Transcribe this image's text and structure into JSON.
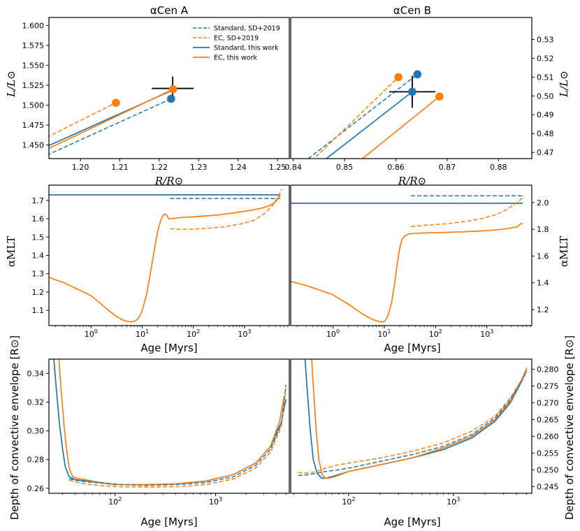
{
  "colors": {
    "blue": "#1f77b4",
    "orange": "#ff7f0e",
    "black": "#000000"
  },
  "titles": {
    "left": "αCen A",
    "right": "αCen B"
  },
  "xlabels": {
    "radius": "R/R⊙",
    "age": "Age [Myrs]"
  },
  "ylabels": {
    "luminosity": "L/L⊙",
    "alpha": "αMLT",
    "depth": "Depth of convective envelope [R⊙]"
  },
  "legend": [
    {
      "label": "Standard, SD+2019",
      "color": "blue",
      "style": "dashed"
    },
    {
      "label": "EC, SD+2019",
      "color": "orange",
      "style": "dashed"
    },
    {
      "label": "Standard, this work",
      "color": "blue",
      "style": "solid"
    },
    {
      "label": "EC, this work",
      "color": "orange",
      "style": "solid"
    }
  ],
  "chart_data": [
    {
      "id": "A_LR",
      "type": "line",
      "title": "αCen A",
      "xlabel": "R/R⊙",
      "ylabel": "L/L⊙",
      "xlim": [
        1.192,
        1.253
      ],
      "ylim": [
        1.433,
        1.61
      ],
      "xticks": [
        1.2,
        1.21,
        1.22,
        1.23,
        1.24,
        1.25
      ],
      "xtick_labels": [
        "1.20",
        "1.21",
        "1.22",
        "1.23",
        "1.24",
        "1.25"
      ],
      "yticks": [
        1.45,
        1.475,
        1.5,
        1.525,
        1.55,
        1.575,
        1.6
      ],
      "ytick_labels": [
        "1.450",
        "1.475",
        "1.500",
        "1.525",
        "1.550",
        "1.575",
        "1.600"
      ],
      "series": [
        {
          "color": "blue",
          "style": "dashed",
          "x": [
            1.19,
            1.223
          ],
          "y": [
            1.434,
            1.508
          ]
        },
        {
          "color": "orange",
          "style": "dashed",
          "x": [
            1.19,
            1.209
          ],
          "y": [
            1.456,
            1.503
          ]
        },
        {
          "color": "blue",
          "style": "solid",
          "x": [
            1.19,
            1.223
          ],
          "y": [
            1.445,
            1.518
          ]
        },
        {
          "color": "orange",
          "style": "solid",
          "x": [
            1.19,
            1.2235
          ],
          "y": [
            1.441,
            1.52
          ]
        }
      ],
      "markers": [
        {
          "color": "blue",
          "x": 1.223,
          "y": 1.508
        },
        {
          "color": "orange",
          "x": 1.209,
          "y": 1.503
        },
        {
          "color": "orange",
          "x": 1.2235,
          "y": 1.52
        }
      ],
      "errorbar": {
        "x": 1.2234,
        "y": 1.521,
        "xerr": 0.0053,
        "yerr": 0.015
      }
    },
    {
      "id": "B_LR",
      "type": "line",
      "title": "αCen B",
      "xlabel": "R/R⊙",
      "ylabel": "L/L⊙",
      "xlim": [
        0.8395,
        0.8865
      ],
      "ylim": [
        0.4667,
        0.5417
      ],
      "xticks": [
        0.84,
        0.85,
        0.86,
        0.87,
        0.88
      ],
      "xtick_labels": [
        "0.84",
        "0.85",
        "0.86",
        "0.87",
        "0.88"
      ],
      "yticks": [
        0.47,
        0.48,
        0.49,
        0.5,
        0.51,
        0.52,
        0.53
      ],
      "ytick_labels": [
        "0.47",
        "0.48",
        "0.49",
        "0.50",
        "0.51",
        "0.52",
        "0.53"
      ],
      "series": [
        {
          "color": "blue",
          "style": "dashed",
          "x": [
            0.84,
            0.8642
          ],
          "y": [
            0.4605,
            0.5115
          ]
        },
        {
          "color": "orange",
          "style": "dashed",
          "x": [
            0.84,
            0.8605
          ],
          "y": [
            0.456,
            0.51
          ]
        },
        {
          "color": "blue",
          "style": "solid",
          "x": [
            0.84,
            0.8632
          ],
          "y": [
            0.453,
            0.5022
          ]
        },
        {
          "color": "orange",
          "style": "solid",
          "x": [
            0.85,
            0.8685
          ],
          "y": [
            0.459,
            0.4997
          ]
        }
      ],
      "markers": [
        {
          "color": "blue",
          "x": 0.8642,
          "y": 0.5115
        },
        {
          "color": "orange",
          "x": 0.8605,
          "y": 0.51
        },
        {
          "color": "blue",
          "x": 0.8632,
          "y": 0.5022
        },
        {
          "color": "orange",
          "x": 0.8685,
          "y": 0.4997
        }
      ],
      "errorbar": {
        "x": 0.8632,
        "y": 0.5022,
        "xerr": 0.0045,
        "yerr": 0.0085
      }
    },
    {
      "id": "A_alpha",
      "type": "line",
      "xscale": "log",
      "xlabel": "Age [Myrs]",
      "ylabel": "αMLT",
      "xlim": [
        0.15,
        7500
      ],
      "ylim": [
        1.017,
        1.783
      ],
      "xticks": [
        1,
        10,
        100,
        1000
      ],
      "xtick_labels": [
        "10^0",
        "10^1",
        "10^2",
        "10^3"
      ],
      "yticks": [
        1.1,
        1.2,
        1.3,
        1.4,
        1.5,
        1.6,
        1.7
      ],
      "ytick_labels": [
        "1.1",
        "1.2",
        "1.3",
        "1.4",
        "1.5",
        "1.6",
        "1.7"
      ],
      "series": [
        {
          "color": "blue",
          "style": "solid",
          "x": [
            0.15,
            5000
          ],
          "y": [
            1.73,
            1.73
          ]
        },
        {
          "color": "blue",
          "style": "dashed",
          "x": [
            35,
            5000
          ],
          "y": [
            1.71,
            1.71
          ]
        },
        {
          "color": "orange",
          "style": "dashed",
          "x": [
            35,
            60,
            100,
            200,
            400,
            800,
            1500,
            2500,
            3500,
            4500,
            5300
          ],
          "y": [
            1.545,
            1.542,
            1.543,
            1.548,
            1.556,
            1.57,
            1.59,
            1.63,
            1.67,
            1.72,
            1.76
          ]
        },
        {
          "color": "orange",
          "style": "solid",
          "x": [
            0.15,
            0.3,
            0.6,
            1.0,
            2.0,
            3.0,
            4.0,
            5.0,
            6.0,
            7.0,
            8.0,
            9.0,
            10,
            12,
            14,
            17,
            20,
            23,
            26,
            28,
            30,
            33,
            38,
            50,
            100,
            300,
            1000,
            2000,
            3000,
            4000,
            5000
          ],
          "y": [
            1.28,
            1.25,
            1.21,
            1.18,
            1.11,
            1.07,
            1.05,
            1.04,
            1.037,
            1.04,
            1.05,
            1.07,
            1.1,
            1.18,
            1.28,
            1.42,
            1.53,
            1.59,
            1.62,
            1.625,
            1.62,
            1.6,
            1.6,
            1.605,
            1.61,
            1.62,
            1.64,
            1.655,
            1.67,
            1.69,
            1.73
          ]
        }
      ]
    },
    {
      "id": "B_alpha",
      "type": "line",
      "xscale": "log",
      "xlabel": "Age [Myrs]",
      "ylabel": "αMLT",
      "xlim": [
        0.15,
        7500
      ],
      "ylim": [
        1.08,
        2.13
      ],
      "xticks": [
        1,
        10,
        100,
        1000
      ],
      "xtick_labels": [
        "10^0",
        "10^1",
        "10^2",
        "10^3"
      ],
      "yticks": [
        1.2,
        1.4,
        1.6,
        1.8,
        2.0
      ],
      "ytick_labels": [
        "1.2",
        "1.4",
        "1.6",
        "1.8",
        "2.0"
      ],
      "series": [
        {
          "color": "blue",
          "style": "solid",
          "x": [
            0.15,
            5000
          ],
          "y": [
            1.995,
            1.995
          ]
        },
        {
          "color": "blue",
          "style": "dashed",
          "x": [
            33,
            5000
          ],
          "y": [
            2.05,
            2.05
          ]
        },
        {
          "color": "orange",
          "style": "dashed",
          "x": [
            33,
            60,
            100,
            200,
            400,
            800,
            1500,
            2500,
            3500,
            4500,
            5300
          ],
          "y": [
            1.82,
            1.83,
            1.835,
            1.845,
            1.86,
            1.88,
            1.91,
            1.95,
            1.99,
            2.02,
            2.05
          ]
        },
        {
          "color": "orange",
          "style": "solid",
          "x": [
            0.15,
            0.3,
            0.6,
            1.0,
            2.0,
            4.0,
            6.0,
            8.0,
            9.0,
            10,
            11,
            12,
            14,
            16,
            18,
            20,
            22,
            25,
            30,
            40,
            60,
            100,
            300,
            1000,
            2000,
            3000,
            4000,
            4500,
            5000
          ],
          "y": [
            1.41,
            1.38,
            1.34,
            1.31,
            1.24,
            1.16,
            1.125,
            1.11,
            1.108,
            1.11,
            1.13,
            1.16,
            1.26,
            1.4,
            1.55,
            1.66,
            1.72,
            1.75,
            1.765,
            1.77,
            1.772,
            1.775,
            1.78,
            1.79,
            1.8,
            1.81,
            1.82,
            1.84,
            1.845
          ]
        }
      ]
    },
    {
      "id": "A_depth",
      "type": "line",
      "xscale": "log",
      "xlabel": "Age [Myrs]",
      "ylabel": "Depth of convective envelope [R⊙]",
      "xlim": [
        22,
        5400
      ],
      "ylim": [
        0.2565,
        0.35
      ],
      "xticks": [
        100,
        1000
      ],
      "xtick_labels": [
        "10^2",
        "10^3"
      ],
      "yticks": [
        0.26,
        0.28,
        0.3,
        0.32,
        0.34
      ],
      "ytick_labels": [
        "0.26",
        "0.28",
        "0.30",
        "0.32",
        "0.34"
      ],
      "series": [
        {
          "color": "blue",
          "style": "solid",
          "x": [
            24,
            26,
            28,
            30,
            32,
            35,
            40,
            60,
            100,
            200,
            400,
            800,
            1500,
            2500,
            3500,
            4500,
            5000
          ],
          "y": [
            0.36,
            0.33,
            0.305,
            0.288,
            0.275,
            0.268,
            0.266,
            0.2645,
            0.2625,
            0.2625,
            0.263,
            0.265,
            0.2695,
            0.2775,
            0.289,
            0.306,
            0.322
          ]
        },
        {
          "color": "orange",
          "style": "solid",
          "x": [
            27,
            29,
            31,
            33,
            35,
            38,
            42,
            60,
            100,
            200,
            400,
            800,
            1500,
            2500,
            3500,
            4300,
            4800
          ],
          "y": [
            0.36,
            0.33,
            0.305,
            0.287,
            0.274,
            0.268,
            0.267,
            0.265,
            0.2625,
            0.2625,
            0.263,
            0.265,
            0.2695,
            0.2775,
            0.289,
            0.306,
            0.324
          ]
        },
        {
          "color": "blue",
          "style": "dashed",
          "x": [
            35,
            50,
            80,
            120,
            200,
            400,
            800,
            1500,
            2500,
            3500,
            4500,
            5000
          ],
          "y": [
            0.2665,
            0.2645,
            0.2635,
            0.2625,
            0.262,
            0.2625,
            0.264,
            0.268,
            0.276,
            0.287,
            0.305,
            0.332
          ]
        },
        {
          "color": "orange",
          "style": "dashed",
          "x": [
            35,
            50,
            80,
            120,
            200,
            400,
            800,
            1500,
            2500,
            3500,
            4500,
            5000
          ],
          "y": [
            0.2655,
            0.263,
            0.2615,
            0.261,
            0.2608,
            0.261,
            0.2625,
            0.2665,
            0.274,
            0.285,
            0.303,
            0.33
          ]
        }
      ]
    },
    {
      "id": "B_depth",
      "type": "line",
      "xscale": "log",
      "xlabel": "Age [Myrs]",
      "ylabel": "Depth of convective envelope [R⊙]",
      "xlim": [
        28,
        5600
      ],
      "ylim": [
        0.243,
        0.283
      ],
      "xticks": [
        100,
        1000
      ],
      "xtick_labels": [
        "10^2",
        "10^3"
      ],
      "yticks": [
        0.245,
        0.25,
        0.255,
        0.26,
        0.265,
        0.27,
        0.275,
        0.28
      ],
      "ytick_labels": [
        "0.245",
        "0.250",
        "0.255",
        "0.260",
        "0.265",
        "0.270",
        "0.275",
        "0.280"
      ],
      "series": [
        {
          "color": "blue",
          "style": "solid",
          "x": [
            38,
            40,
            43,
            46,
            50,
            55,
            60,
            70,
            100,
            200,
            400,
            800,
            1500,
            2500,
            3500,
            4500,
            5000
          ],
          "y": [
            0.285,
            0.275,
            0.262,
            0.253,
            0.249,
            0.2475,
            0.2475,
            0.248,
            0.2495,
            0.2515,
            0.2535,
            0.256,
            0.2595,
            0.2645,
            0.27,
            0.2765,
            0.2795
          ]
        },
        {
          "color": "orange",
          "style": "solid",
          "x": [
            44,
            46,
            49,
            52,
            56,
            60,
            65,
            75,
            100,
            200,
            400,
            800,
            1500,
            2500,
            3500,
            4500,
            5000
          ],
          "y": [
            0.285,
            0.275,
            0.262,
            0.253,
            0.2485,
            0.2475,
            0.2475,
            0.248,
            0.2495,
            0.2515,
            0.2535,
            0.2565,
            0.26,
            0.265,
            0.2705,
            0.277,
            0.2795
          ]
        },
        {
          "color": "blue",
          "style": "dashed",
          "x": [
            33,
            40,
            50,
            60,
            80,
            100,
            200,
            400,
            800,
            1500,
            2500,
            3500,
            4500,
            5000
          ],
          "y": [
            0.2483,
            0.2485,
            0.249,
            0.2495,
            0.25,
            0.2505,
            0.2525,
            0.2545,
            0.257,
            0.2605,
            0.2655,
            0.271,
            0.2765,
            0.28
          ]
        },
        {
          "color": "orange",
          "style": "dashed",
          "x": [
            33,
            40,
            50,
            60,
            80,
            100,
            200,
            400,
            800,
            1500,
            2500,
            3500,
            4500,
            5000
          ],
          "y": [
            0.2492,
            0.249,
            0.2495,
            0.2505,
            0.2515,
            0.252,
            0.2535,
            0.2555,
            0.258,
            0.2615,
            0.266,
            0.2715,
            0.277,
            0.2805
          ]
        }
      ]
    }
  ]
}
